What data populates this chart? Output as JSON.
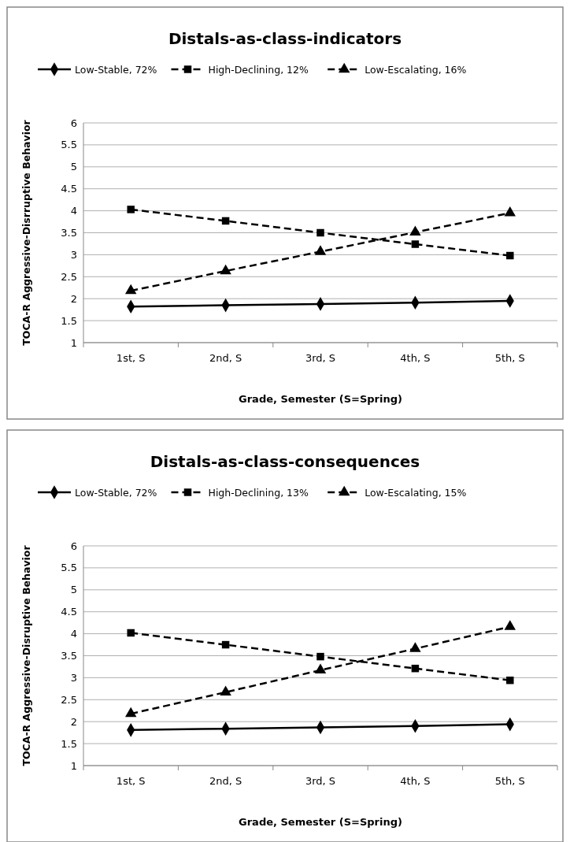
{
  "chart_data": [
    {
      "type": "line",
      "title": "Distals-as-class-indicators",
      "xlabel": "Grade, Semester (S=Spring)",
      "ylabel": "TOCA-R Aggressive-Disrruptive Behavior",
      "categories": [
        "1st, S",
        "2nd, S",
        "3rd, S",
        "4th, S",
        "5th, S"
      ],
      "ylim": [
        1,
        6
      ],
      "yticks": [
        1,
        1.5,
        2,
        2.5,
        3,
        3.5,
        4,
        4.5,
        5,
        5.5,
        6
      ],
      "grid": "y",
      "legend": "top",
      "series": [
        {
          "name": "Low-Stable, 72%",
          "color": "#000000",
          "marker": "diamond",
          "line_style": "solid",
          "values": [
            1.82,
            1.85,
            1.88,
            1.91,
            1.95
          ]
        },
        {
          "name": "High-Declining, 12%",
          "color": "#000000",
          "marker": "square",
          "line_style": "dashed",
          "values": [
            4.03,
            3.77,
            3.5,
            3.24,
            2.98
          ]
        },
        {
          "name": "Low-Escalating, 16%",
          "color": "#000000",
          "marker": "triangle",
          "line_style": "dashed",
          "values": [
            2.18,
            2.63,
            3.07,
            3.51,
            3.95
          ]
        }
      ]
    },
    {
      "type": "line",
      "title": "Distals-as-class-consequences",
      "xlabel": "Grade, Semester (S=Spring)",
      "ylabel": "TOCA-R Aggressive-Disruptive Behavior",
      "categories": [
        "1st, S",
        "2nd, S",
        "3rd, S",
        "4th, S",
        "5th, S"
      ],
      "ylim": [
        1,
        6
      ],
      "yticks": [
        1,
        1.5,
        2,
        2.5,
        3,
        3.5,
        4,
        4.5,
        5,
        5.5,
        6
      ],
      "grid": "y",
      "legend": "top",
      "series": [
        {
          "name": "Low-Stable, 72%",
          "color": "#000000",
          "marker": "diamond",
          "line_style": "solid",
          "values": [
            1.81,
            1.84,
            1.87,
            1.9,
            1.94
          ]
        },
        {
          "name": "High-Declining, 13%",
          "color": "#000000",
          "marker": "square",
          "line_style": "dashed",
          "values": [
            4.02,
            3.75,
            3.48,
            3.21,
            2.94
          ]
        },
        {
          "name": "Low-Escalating, 15%",
          "color": "#000000",
          "marker": "triangle",
          "line_style": "dashed",
          "values": [
            2.18,
            2.67,
            3.17,
            3.66,
            4.16
          ]
        }
      ]
    }
  ]
}
